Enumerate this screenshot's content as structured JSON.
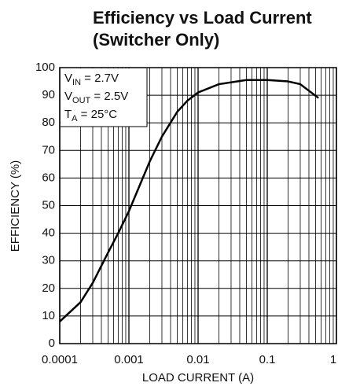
{
  "chart_data": {
    "type": "line",
    "title": [
      "Efficiency vs Load Current",
      "(Switcher Only)"
    ],
    "x_label": "LOAD CURRENT (A)",
    "y_label": "EFFICIENCY (%)",
    "annotations": [
      [
        "V",
        "IN",
        " = 2.7V"
      ],
      [
        "V",
        "OUT",
        " = 2.5V"
      ],
      [
        "T",
        "A",
        " = 25°C"
      ]
    ],
    "x": [
      0.0001,
      0.0002,
      0.0003,
      0.0005,
      0.0007,
      0.001,
      0.002,
      0.003,
      0.005,
      0.007,
      0.01,
      0.02,
      0.05,
      0.1,
      0.2,
      0.3,
      0.55
    ],
    "series": [
      {
        "name": "Efficiency",
        "color": "#000000",
        "values": [
          8,
          15,
          22,
          33,
          40,
          48,
          66,
          75,
          84,
          88,
          91,
          94,
          95.5,
          95.5,
          95,
          94,
          89
        ]
      }
    ],
    "xscale": "log",
    "xlim": [
      0.0001,
      1
    ],
    "xticks": [
      0.0001,
      0.001,
      0.01,
      0.1,
      1
    ],
    "xminor_ticks": [
      0.0002,
      0.0003,
      0.0004,
      0.0005,
      0.0006,
      0.0007,
      0.0008,
      0.0009,
      0.002,
      0.003,
      0.004,
      0.005,
      0.006,
      0.007,
      0.008,
      0.009,
      0.02,
      0.03,
      0.04,
      0.05,
      0.06,
      0.07,
      0.08,
      0.09,
      0.2,
      0.3,
      0.4,
      0.5,
      0.6,
      0.7,
      0.8,
      0.9
    ],
    "ylim": [
      0,
      100
    ],
    "yticks": [
      0,
      10,
      20,
      30,
      40,
      50,
      60,
      70,
      80,
      90,
      100
    ],
    "grid": true
  }
}
